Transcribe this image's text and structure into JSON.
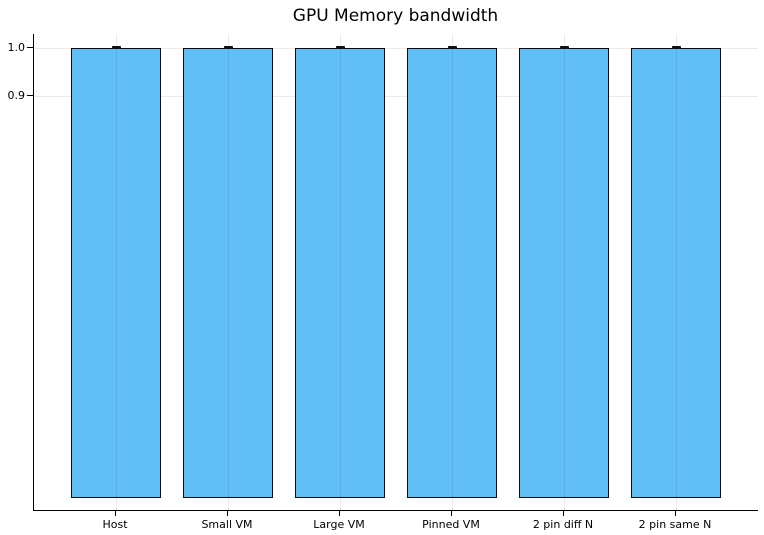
{
  "chart_data": {
    "type": "bar",
    "title": "GPU Memory bandwidth",
    "categories": [
      "Host",
      "Small VM",
      "Large VM",
      "Pinned VM",
      "2 pin diff N",
      "2 pin same N"
    ],
    "values": [
      1.0,
      1.0,
      1.0,
      1.0,
      1.0,
      1.0
    ],
    "error_bars": [
      0.004,
      0.003,
      0.003,
      0.003,
      0.003,
      0.003
    ],
    "xlabel": "",
    "ylabel": "",
    "yticks": [
      1.0,
      0.9
    ],
    "ytick_labels": [
      "1.0",
      "0.9"
    ],
    "ylim_top": 1.005,
    "grid": true,
    "legend": "none",
    "bar_fill_color": "#61BEF7",
    "bar_edge_color": "#0a0a0a",
    "error_bar_color": "#111111",
    "grid_color": "#e9e9e9",
    "axis_color": "#000000"
  }
}
